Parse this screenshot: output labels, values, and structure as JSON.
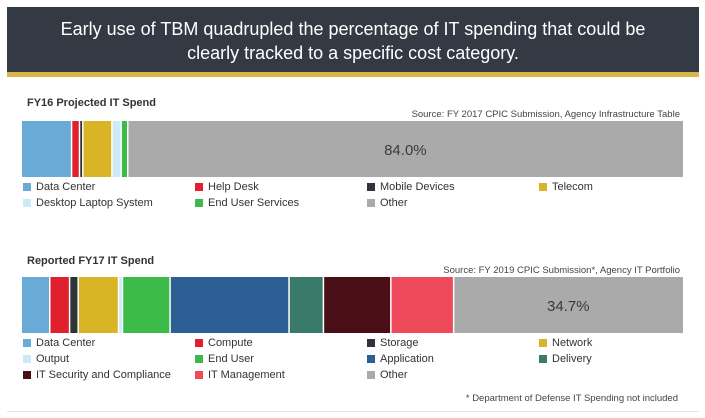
{
  "header": {
    "line1": "Early use of TBM quadrupled the percentage of IT spending that could be",
    "line2": "clearly tracked to a specific cost category."
  },
  "chart_data": [
    {
      "type": "bar",
      "orientation": "horizontal-stacked",
      "title": "FY16 Projected IT Spend",
      "source": "Source: FY 2017 CPIC Submission, Agency Infrastructure Table",
      "unit": "percent",
      "series": [
        {
          "name": "Data Center",
          "value": 7.5,
          "color": "#6aaad6"
        },
        {
          "name": "Help Desk",
          "value": 1.2,
          "color": "#e0202e"
        },
        {
          "name": "Mobile Devices",
          "value": 0.5,
          "color": "#2f333a"
        },
        {
          "name": "Telecom",
          "value": 4.4,
          "color": "#d9b526"
        },
        {
          "name": "Desktop Laptop System",
          "value": 1.4,
          "color": "#cdeaf7"
        },
        {
          "name": "End User Services",
          "value": 1.0,
          "color": "#3dbb4a"
        },
        {
          "name": "Other",
          "value": 84.0,
          "color": "#aaaaaa"
        }
      ],
      "value_label": "84.0%",
      "labeled_series": "Other",
      "legend": {
        "rows": [
          [
            "Data Center",
            "Help Desk",
            "Mobile Devices",
            "Telecom"
          ],
          [
            "Desktop Laptop System",
            "End User Services",
            "Other"
          ]
        ]
      }
    },
    {
      "type": "bar",
      "orientation": "horizontal-stacked",
      "title": "Reported FY17 IT Spend",
      "source": "Source: FY 2019 CPIC Submission*, Agency IT Portfolio",
      "unit": "percent",
      "series": [
        {
          "name": "Data Center",
          "value": 4.2,
          "color": "#6aaad6"
        },
        {
          "name": "Compute",
          "value": 3.0,
          "color": "#e0202e"
        },
        {
          "name": "Storage",
          "value": 1.3,
          "color": "#2f333a"
        },
        {
          "name": "Network",
          "value": 6.1,
          "color": "#d9b526"
        },
        {
          "name": "Output",
          "value": 0.6,
          "color": "#cdeaf7"
        },
        {
          "name": "End User",
          "value": 7.2,
          "color": "#3dbb4a"
        },
        {
          "name": "Application",
          "value": 18.0,
          "color": "#2c5f94"
        },
        {
          "name": "Delivery",
          "value": 5.2,
          "color": "#3a7a6a"
        },
        {
          "name": "IT Security and Compliance",
          "value": 10.2,
          "color": "#4a0f16"
        },
        {
          "name": "IT Management",
          "value": 9.5,
          "color": "#ee4a5c"
        },
        {
          "name": "Other",
          "value": 34.7,
          "color": "#aaaaaa"
        }
      ],
      "value_label": "34.7%",
      "labeled_series": "Other",
      "legend": {
        "rows": [
          [
            "Data Center",
            "Compute",
            "Storage",
            "Network"
          ],
          [
            "Output",
            "End User",
            "Application",
            "Delivery"
          ],
          [
            "IT Security and Compliance",
            "IT Management",
            "Other"
          ]
        ]
      }
    }
  ],
  "footnote": "* Department of Defense IT Spending not included"
}
